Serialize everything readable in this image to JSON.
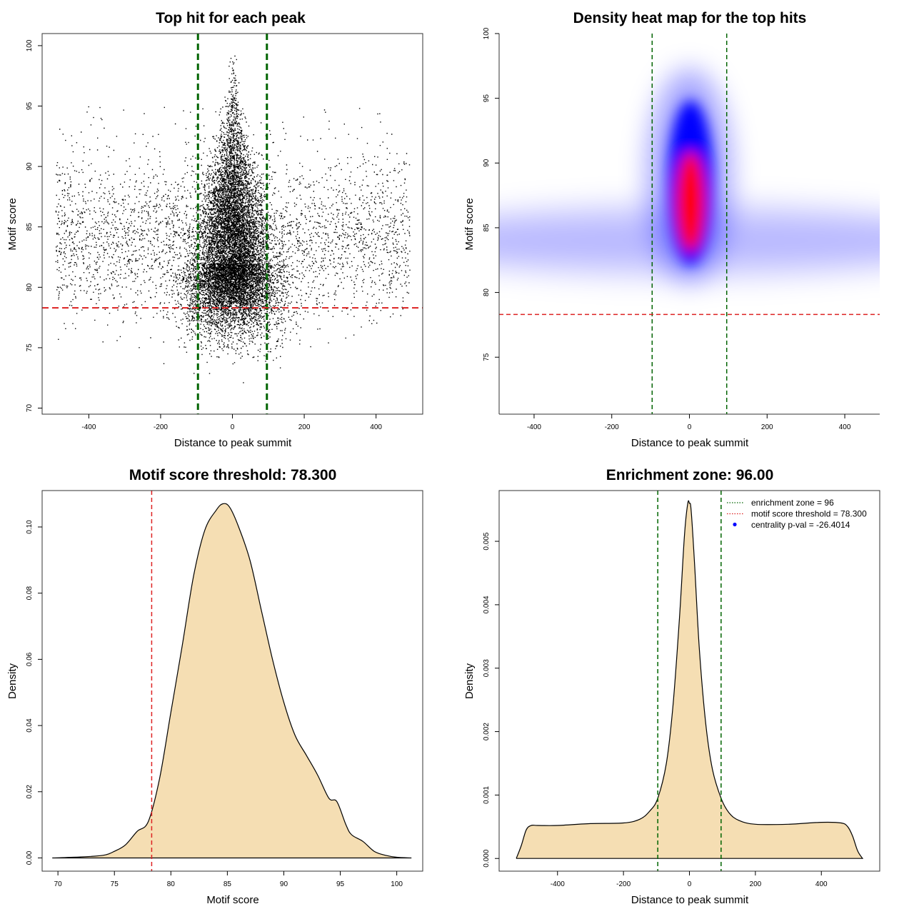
{
  "chart_data": [
    {
      "id": "scatter",
      "type": "scatter",
      "title": "Top hit for each peak",
      "xlabel": "Distance to peak summit",
      "ylabel": "Motif score",
      "xlim": [
        -530,
        530
      ],
      "ylim": [
        69.5,
        101
      ],
      "xticks": [
        -400,
        -200,
        0,
        200,
        400
      ],
      "yticks": [
        70,
        75,
        80,
        85,
        90,
        95,
        100
      ],
      "vlines": [
        -96,
        96
      ],
      "hline": 78.3,
      "colors": {
        "points": "#000000",
        "vlines": "#006400",
        "hline": "#dd2222"
      },
      "point_description": "dense point cloud; background band 77-93 centred near 84 across [-500, 500]; central peak near 0 reaching ~99"
    },
    {
      "id": "heatmap",
      "type": "heatmap",
      "title": "Density heat map for the top hits",
      "xlabel": "Distance to peak summit",
      "ylabel": "Motif score",
      "xlim": [
        -490,
        490
      ],
      "ylim": [
        70.6,
        100
      ],
      "xticks": [
        -400,
        -200,
        0,
        200,
        400
      ],
      "yticks": [
        75,
        80,
        85,
        90,
        95,
        100
      ],
      "vlines": [
        -96,
        96
      ],
      "hline": 78.3,
      "colors": {
        "low": "#ffffff",
        "mid": "#0000ff",
        "high": "#ff0000",
        "vlines": "#006400",
        "hline": "#dd2222"
      },
      "density_description": "pale blue horizontal band centred at score ~84; dense blue-to-red core at distance ~0 between scores 82 and 95, red peak near 86-87"
    },
    {
      "id": "score-density",
      "type": "area",
      "title": "Motif score threshold: 78.300",
      "xlabel": "Motif score",
      "ylabel": "Density",
      "xlim": [
        68.6,
        102.3
      ],
      "ylim": [
        -0.004,
        0.111
      ],
      "xticks": [
        70,
        75,
        80,
        85,
        90,
        95,
        100
      ],
      "yticks": [
        0.0,
        0.02,
        0.04,
        0.06,
        0.08,
        0.1
      ],
      "ytick_labels": [
        "0.00",
        "0.02",
        "0.04",
        "0.06",
        "0.08",
        "0.10"
      ],
      "vlines": [
        78.3
      ],
      "x": [
        69.5,
        72,
        74,
        75,
        76,
        77,
        78,
        79,
        80,
        81,
        82,
        83,
        84,
        84.6,
        85.2,
        86,
        87,
        88,
        89,
        90,
        91,
        92,
        93,
        94,
        94.7,
        95.5,
        96,
        97,
        98,
        99,
        100,
        101.3
      ],
      "y": [
        0.0,
        0.0003,
        0.0008,
        0.002,
        0.004,
        0.008,
        0.011,
        0.024,
        0.044,
        0.064,
        0.085,
        0.099,
        0.105,
        0.107,
        0.106,
        0.1,
        0.09,
        0.075,
        0.06,
        0.047,
        0.037,
        0.031,
        0.025,
        0.018,
        0.017,
        0.01,
        0.007,
        0.005,
        0.002,
        0.0008,
        0.0002,
        0.0
      ],
      "colors": {
        "fill": "#f5deb3",
        "line": "#000000",
        "vline": "#dd2222"
      }
    },
    {
      "id": "distance-density",
      "type": "area",
      "title": "Enrichment zone: 96.00",
      "xlabel": "Distance to peak summit",
      "ylabel": "Density",
      "xlim": [
        -577,
        577
      ],
      "ylim": [
        -0.0002,
        0.0058
      ],
      "xticks": [
        -400,
        -200,
        0,
        200,
        400
      ],
      "yticks": [
        0.0,
        0.001,
        0.002,
        0.003,
        0.004,
        0.005
      ],
      "ytick_labels": [
        "0.000",
        "0.001",
        "0.002",
        "0.003",
        "0.004",
        "0.005"
      ],
      "vlines": [
        -96,
        96
      ],
      "x": [
        -525,
        -510,
        -495,
        -480,
        -460,
        -400,
        -300,
        -200,
        -150,
        -120,
        -96,
        -70,
        -50,
        -30,
        -15,
        -5,
        0,
        5,
        15,
        30,
        50,
        70,
        96,
        120,
        150,
        200,
        300,
        400,
        460,
        480,
        495,
        510,
        525
      ],
      "y": [
        0.0,
        0.0002,
        0.00045,
        0.00052,
        0.00052,
        0.00052,
        0.00055,
        0.00056,
        0.00062,
        0.00075,
        0.00095,
        0.0015,
        0.0024,
        0.0038,
        0.0051,
        0.0056,
        0.0056,
        0.0055,
        0.0047,
        0.0033,
        0.0021,
        0.0014,
        0.00095,
        0.00072,
        0.0006,
        0.00054,
        0.00054,
        0.00057,
        0.00056,
        0.0005,
        0.00035,
        0.00012,
        0.0
      ],
      "colors": {
        "fill": "#f5deb3",
        "line": "#000000",
        "vlines": "#006400",
        "point": "#0000ff"
      },
      "legend": [
        {
          "label": "enrichment zone = 96",
          "style": "dotted",
          "color": "#006400"
        },
        {
          "label": "motif score threshold = 78.300",
          "style": "dotted",
          "color": "#dd2222"
        },
        {
          "label": "centrality p-val = -26.4014",
          "style": "point",
          "color": "#0000ff"
        }
      ],
      "legend_position": "top-right"
    }
  ]
}
